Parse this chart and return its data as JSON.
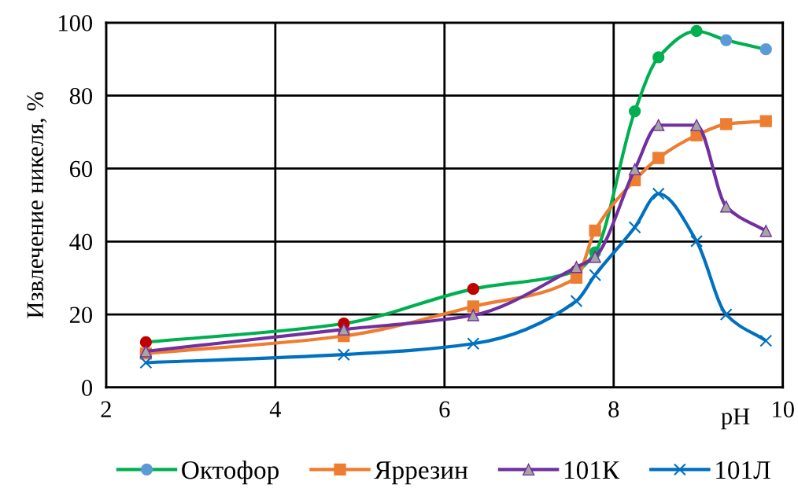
{
  "chart_data": {
    "type": "line",
    "xlabel": "pH",
    "ylabel": "Извлечение никеля, %",
    "xlim": [
      2,
      10
    ],
    "ylim": [
      0,
      100
    ],
    "xticks": [
      2,
      4,
      6,
      8,
      10
    ],
    "yticks": [
      0,
      20,
      40,
      60,
      80,
      100
    ],
    "grid": true,
    "legend": "bottom",
    "line_style": "solid",
    "series": [
      {
        "name": "Октофор",
        "color": "#00b050",
        "marker": "circle",
        "x": [
          2.47,
          4.81,
          6.34,
          7.56,
          7.78,
          8.25,
          8.53,
          8.98,
          9.33,
          9.8
        ],
        "values": [
          12.4,
          17.5,
          27.0,
          32,
          37,
          75.7,
          90.5,
          97.7,
          95.2,
          92.7
        ],
        "colors": [
          "#c00000",
          "#c00000",
          "#c00000",
          "#c00000",
          "#00b050",
          "#00b050",
          "#00b050",
          "#00b050",
          "#5b9bd5",
          "#5b9bd5"
        ]
      },
      {
        "name": "Яррезин",
        "color": "#ed7d31",
        "marker": "square",
        "x": [
          2.47,
          4.81,
          6.34,
          7.56,
          7.78,
          8.25,
          8.53,
          8.98,
          9.33,
          9.8
        ],
        "values": [
          9.3,
          14.1,
          22.2,
          30.1,
          43.0,
          56.8,
          62.9,
          69.1,
          72.2,
          73.0
        ]
      },
      {
        "name": "101К",
        "color": "#7030a0",
        "marker": "triangle",
        "x": [
          2.47,
          4.81,
          6.34,
          7.56,
          7.78,
          8.25,
          8.53,
          8.98,
          9.33,
          9.8
        ],
        "values": [
          9.9,
          15.9,
          19.8,
          33.0,
          35.8,
          59.8,
          71.9,
          71.9,
          49.6,
          42.9
        ],
        "colors": [
          "#a5a5a5",
          "#a5a5a5",
          "#a5a5a5",
          "#a5a5a5",
          "#a5a5a5",
          "#a5a5a5",
          "#a5a5a5",
          "#a5a5a5",
          "#a5a5a5",
          "#a5a5a5"
        ]
      },
      {
        "name": "101Л",
        "color": "#0070c0",
        "marker": "cross",
        "x": [
          2.47,
          4.81,
          6.34,
          7.56,
          7.78,
          8.25,
          8.53,
          8.98,
          9.33,
          9.8
        ],
        "values": [
          6.8,
          9.0,
          12.0,
          23.7,
          30.8,
          43.9,
          53.1,
          40.1,
          20.0,
          12.8
        ]
      }
    ]
  }
}
